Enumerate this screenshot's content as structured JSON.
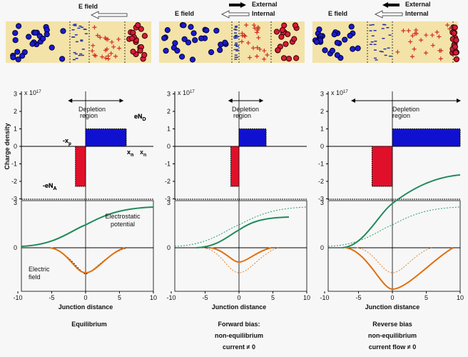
{
  "panels": [
    {
      "top_labels": [
        "E field"
      ],
      "title": [
        "Equilibrium"
      ]
    },
    {
      "top_labels": [
        "E field",
        "External",
        "Internal"
      ],
      "title": [
        "Forward bias:",
        "non-equilibrium",
        "current ≠ 0"
      ]
    },
    {
      "top_labels": [
        "E field",
        "External",
        "Internal"
      ],
      "title": [
        "Reverse bias",
        "non-equilibrium",
        "current flow ≠ 0"
      ]
    }
  ],
  "multiplier": {
    "base": "x 10",
    "exponent": "17"
  },
  "yticks": [
    3,
    2,
    1,
    0,
    -1,
    -2,
    -3
  ],
  "lower_yticks": [
    3,
    0
  ],
  "xticks": [
    -10,
    -5,
    0,
    5,
    10
  ],
  "depletion_label": [
    "Depletion",
    "region"
  ],
  "donor_label": {
    "main": "eN",
    "sub": "D"
  },
  "acceptor_label": {
    "main": "-eN",
    "sub": "A"
  },
  "xp_label": {
    "main": "-x",
    "sub": "p"
  },
  "xn_label": {
    "main": "x",
    "sub": "n"
  },
  "ylabel": "Charge density",
  "xlabel": "Junction distance",
  "potential_label": [
    "Electrostatic",
    "potential"
  ],
  "field_label": [
    "Electric",
    "field"
  ]
}
